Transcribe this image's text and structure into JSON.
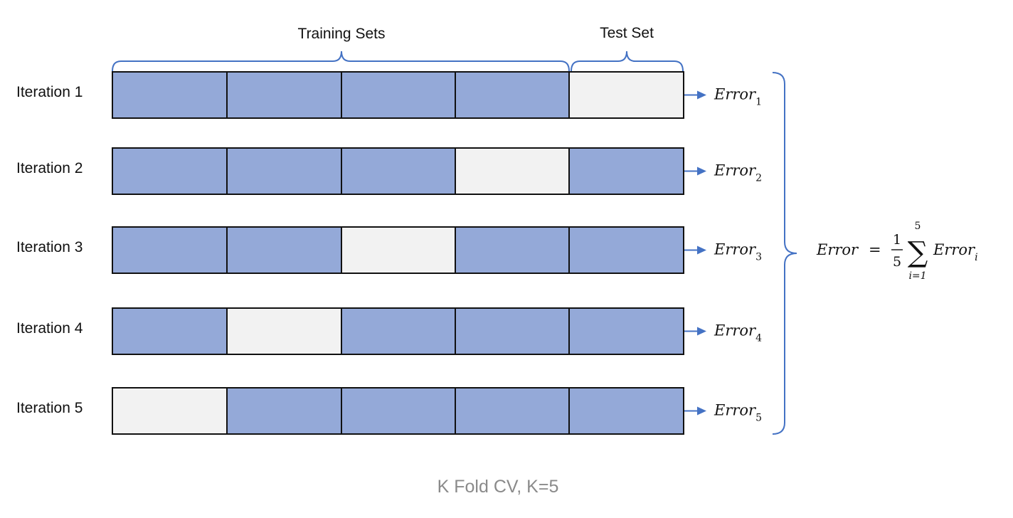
{
  "header": {
    "training_label": "Training Sets",
    "test_label": "Test Set"
  },
  "iterations": [
    {
      "label": "Iteration 1",
      "test_fold": 5,
      "error_name": "Error",
      "error_sub": "1"
    },
    {
      "label": "Iteration 2",
      "test_fold": 4,
      "error_name": "Error",
      "error_sub": "2"
    },
    {
      "label": "Iteration 3",
      "test_fold": 3,
      "error_name": "Error",
      "error_sub": "3"
    },
    {
      "label": "Iteration 4",
      "test_fold": 2,
      "error_name": "Error",
      "error_sub": "4"
    },
    {
      "label": "Iteration 5",
      "test_fold": 1,
      "error_name": "Error",
      "error_sub": "5"
    }
  ],
  "folds_per_row": 5,
  "formula": {
    "lhs": "Error",
    "equals": "=",
    "numerator": "1",
    "denominator": "5",
    "sigma": "∑",
    "upper": "5",
    "lower": "i=1",
    "term": "Error",
    "term_sub": "i"
  },
  "caption": "K Fold CV, K=5",
  "colors": {
    "train": "#94a9d8",
    "test": "#f2f2f2",
    "border": "#111111",
    "accent": "#4472c4"
  }
}
